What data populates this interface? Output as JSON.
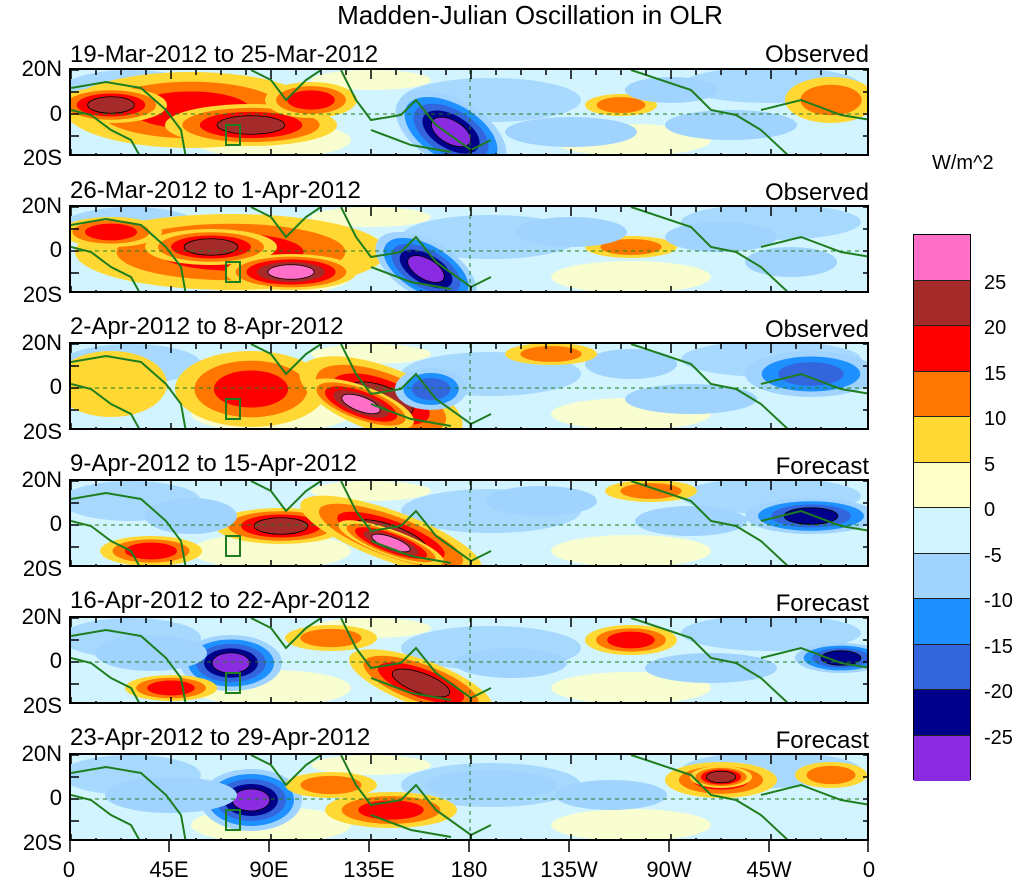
{
  "title": "Madden-Julian Oscillation in OLR",
  "units": "W/m^2",
  "lat_labels": [
    "20N",
    "0",
    "20S"
  ],
  "lon_labels": [
    "0",
    "45E",
    "90E",
    "135E",
    "180",
    "135W",
    "90W",
    "45W",
    "0"
  ],
  "colorbar": {
    "labels": [
      "25",
      "20",
      "15",
      "10",
      "5",
      "0",
      "-5",
      "-10",
      "-15",
      "-20",
      "-25"
    ],
    "colors": [
      "#ff6ec7",
      "#a52a2a",
      "#ff0000",
      "#ff7700",
      "#ffd833",
      "#ffffc8",
      "#d2f4ff",
      "#a0d4ff",
      "#1e90ff",
      "#3366dd",
      "#00008b",
      "#8a2be2"
    ]
  },
  "coast_color": "#1e7d1e",
  "panels": [
    {
      "date_range": "19-Mar-2012 to 25-Mar-2012",
      "kind": "Observed"
    },
    {
      "date_range": "26-Mar-2012 to 1-Apr-2012",
      "kind": "Observed"
    },
    {
      "date_range": "2-Apr-2012 to 8-Apr-2012",
      "kind": "Observed"
    },
    {
      "date_range": "9-Apr-2012 to 15-Apr-2012",
      "kind": "Forecast"
    },
    {
      "date_range": "16-Apr-2012 to 22-Apr-2012",
      "kind": "Forecast"
    },
    {
      "date_range": "23-Apr-2012 to 29-Apr-2012",
      "kind": "Forecast"
    }
  ]
}
